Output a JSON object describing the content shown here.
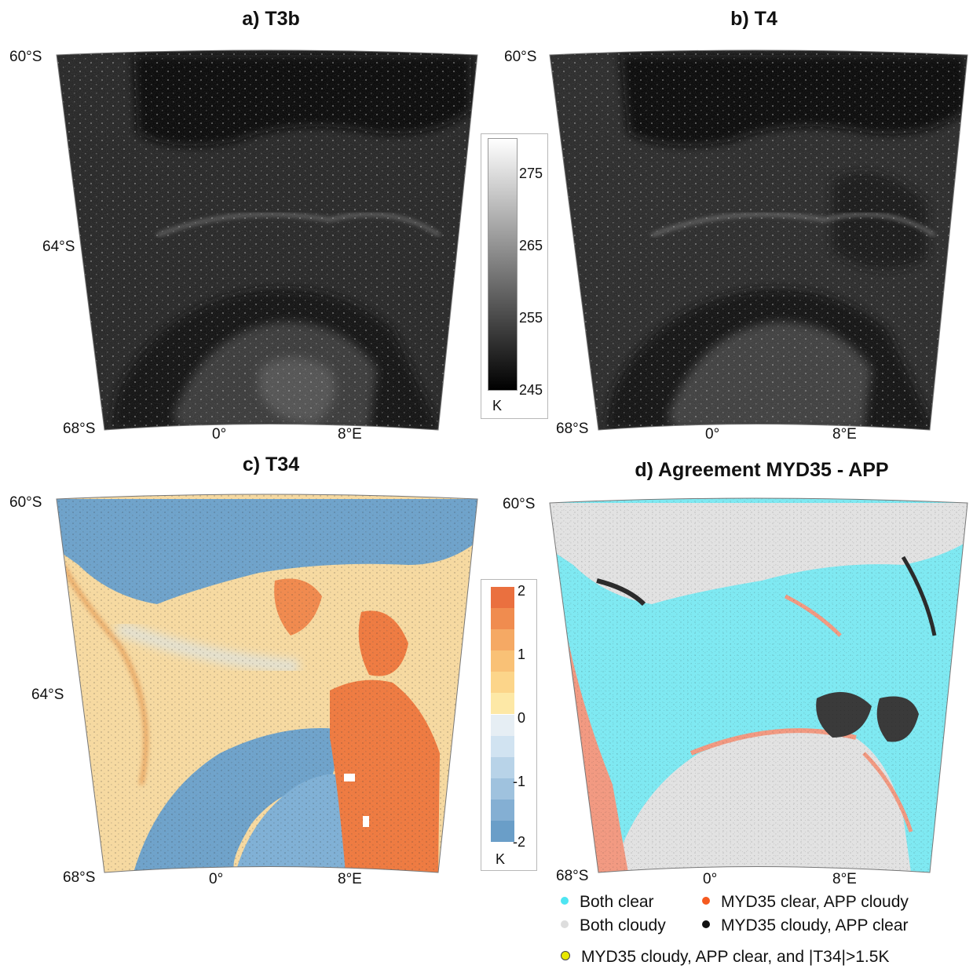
{
  "panels": [
    {
      "id": "a",
      "title": "a) T3b",
      "lat_top": "60°S",
      "lat_mid": "64°S",
      "lat_bot": "68°S",
      "lon_0": "0°",
      "lon_8": "8°E"
    },
    {
      "id": "b",
      "title": "b) T4",
      "lat_top": "60°S",
      "lat_mid": "",
      "lat_bot": "68°S",
      "lon_0": "0°",
      "lon_8": "8°E"
    },
    {
      "id": "c",
      "title": "c) T34",
      "lat_top": "60°S",
      "lat_mid": "64°S",
      "lat_bot": "68°S",
      "lon_0": "0°",
      "lon_8": "8°E"
    },
    {
      "id": "d",
      "title": "d) Agreement MYD35 - APP",
      "lat_top": "60°S",
      "lat_mid": "",
      "lat_bot": "68°S",
      "lon_0": "0°",
      "lon_8": "8°E"
    }
  ],
  "colorbar_temp": {
    "ticks": [
      "275",
      "265",
      "255",
      "245"
    ],
    "unit": "K",
    "range": [
      245,
      280
    ]
  },
  "colorbar_t34": {
    "ticks": [
      "2",
      "1",
      "0",
      "-1",
      "-2"
    ],
    "unit": "K",
    "range": [
      -2,
      2
    ],
    "colors": [
      "#6a9ec8",
      "#84afd3",
      "#9fc2de",
      "#b8d3e8",
      "#d1e3f1",
      "#e6eef4",
      "#fde8a6",
      "#fcd58a",
      "#f9c176",
      "#f5a964",
      "#f08c4f",
      "#ea703f"
    ]
  },
  "legend": {
    "items": [
      {
        "label": "Both clear",
        "color": "#4ee5f2"
      },
      {
        "label": "MYD35 clear, APP cloudy",
        "color": "#f55a20"
      },
      {
        "label": "Both cloudy",
        "color": "#dddddd"
      },
      {
        "label": "MYD35 cloudy, APP clear",
        "color": "#111111"
      },
      {
        "label": "MYD35 cloudy, APP clear, and |T34|>1.5K",
        "color": "#e8e800"
      }
    ]
  },
  "colors": {
    "agree_clear": "#7fe9f2",
    "agree_cloudy": "#e2e2e2",
    "myd_clear_app_cloudy": "#f29a82",
    "myd_cloudy_app_clear": "#2b2b2b",
    "t34_cold": "#6ea2ca",
    "t34_warm": "#ee7a40",
    "t34_neutral": "#f6d79a"
  }
}
